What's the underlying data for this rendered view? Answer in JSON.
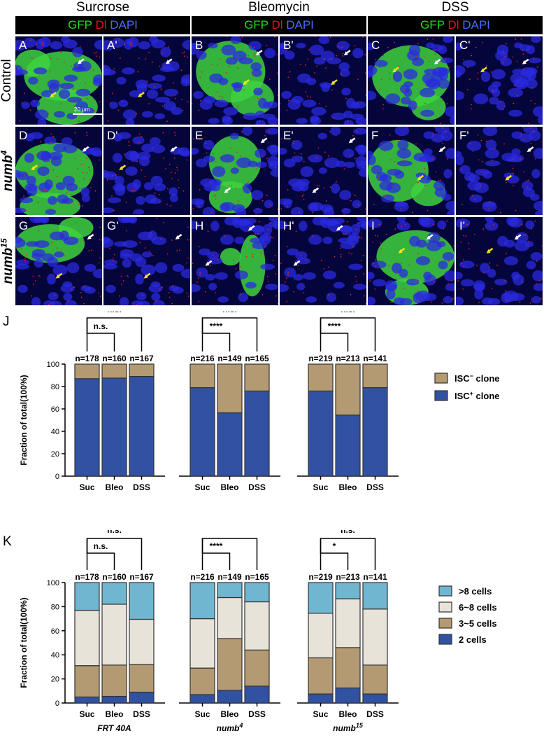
{
  "conditions": [
    {
      "title": "Surcrose",
      "channels": {
        "green": "GFP",
        "red": "Dl",
        "blue": "DAPI"
      }
    },
    {
      "title": "Bleomycin",
      "channels": {
        "green": "GFP",
        "red": "Dl",
        "blue": "DAPI"
      }
    },
    {
      "title": "DSS",
      "channels": {
        "green": "GFP",
        "red": "Dl",
        "blue": "DAPI"
      }
    }
  ],
  "rows": [
    {
      "label": "Control",
      "label_base": "",
      "label_sup": ""
    },
    {
      "label": "",
      "label_base": "numb",
      "label_sup": "4"
    },
    {
      "label": "",
      "label_base": "numb",
      "label_sup": "15"
    }
  ],
  "panel_labels": [
    [
      "A",
      "A'",
      "B",
      "B'",
      "C",
      "C'"
    ],
    [
      "D",
      "D'",
      "E",
      "E'",
      "F",
      "F'"
    ],
    [
      "G",
      "G'",
      "H",
      "H'",
      "I",
      "I'"
    ]
  ],
  "scale_bar": "20 μm",
  "colors": {
    "blue": "#3152a3",
    "tan": "#b49a72",
    "cream": "#e8e3d9",
    "lightblue": "#70b6d0",
    "gfp": "#3ed23e",
    "dapi": "#2a2ae0",
    "delta": "#e02020"
  },
  "chart_data": [
    {
      "type": "bar",
      "panel_label": "J",
      "stacked": true,
      "ylabel": "Fraction of total(100%)",
      "ylim": [
        0,
        100
      ],
      "yticks": [
        "0",
        "20",
        "40",
        "60",
        "80",
        "100"
      ],
      "groups": [
        {
          "name": "FRT 40A",
          "name_base": "FRT 40A",
          "name_sup": "",
          "categories": [
            "Suc",
            "Bleo",
            "DSS"
          ],
          "n": [
            "n=178",
            "n=160",
            "n=167"
          ],
          "sig_outer": "n.s.",
          "sig_inner": "n.s."
        },
        {
          "name": "numb4",
          "name_base": "numb",
          "name_sup": "4",
          "categories": [
            "Suc",
            "Bleo",
            "DSS"
          ],
          "n": [
            "n=216",
            "n=149",
            "n=165"
          ],
          "sig_outer": "n.s.",
          "sig_inner": "****"
        },
        {
          "name": "numb15",
          "name_base": "numb",
          "name_sup": "15",
          "categories": [
            "Suc",
            "Bleo",
            "DSS"
          ],
          "n": [
            "n=219",
            "n=213",
            "n=141"
          ],
          "sig_outer": "n.s.",
          "sig_inner": "****"
        }
      ],
      "series": [
        {
          "name": "ISC+ clone",
          "name_base": "ISC",
          "name_sup": "+",
          "name_rest": " clone",
          "color": "#3152a3",
          "values": [
            87,
            87.5,
            89,
            79,
            56.5,
            76,
            76,
            54.5,
            79
          ]
        },
        {
          "name": "ISC- clone",
          "name_base": "ISC",
          "name_sup": "−",
          "name_rest": " clone",
          "color": "#b49a72",
          "values": [
            13,
            12.5,
            11,
            21,
            43.5,
            24,
            24,
            45.5,
            21
          ]
        }
      ],
      "legend_placement": "right"
    },
    {
      "type": "bar",
      "panel_label": "K",
      "stacked": true,
      "ylabel": "Fraction of total(100%)",
      "ylim": [
        0,
        100
      ],
      "yticks": [
        "0",
        "20",
        "40",
        "60",
        "80",
        "100"
      ],
      "groups": [
        {
          "name": "FRT 40A",
          "name_base": "FRT 40A",
          "name_sup": "",
          "categories": [
            "Suc",
            "Bleo",
            "DSS"
          ],
          "n": [
            "n=178",
            "n=160",
            "n=167"
          ],
          "sig_outer": "n.s.",
          "sig_inner": "n.s."
        },
        {
          "name": "numb4",
          "name_base": "numb",
          "name_sup": "4",
          "categories": [
            "Suc",
            "Bleo",
            "DSS"
          ],
          "n": [
            "n=216",
            "n=149",
            "n=165"
          ],
          "sig_outer": "**",
          "sig_inner": "****"
        },
        {
          "name": "numb15",
          "name_base": "numb",
          "name_sup": "15",
          "categories": [
            "Suc",
            "Bleo",
            "DSS"
          ],
          "n": [
            "n=219",
            "n=213",
            "n=141"
          ],
          "sig_outer": "n.s.",
          "sig_inner": "*"
        }
      ],
      "series": [
        {
          "name": "2 cells",
          "color": "#3152a3",
          "values": [
            5,
            5.5,
            9,
            7,
            10.5,
            14,
            7.5,
            12.5,
            7.5
          ]
        },
        {
          "name": "3~5 cells",
          "color": "#b49a72",
          "values": [
            26,
            26,
            23,
            22,
            43,
            30,
            30,
            33.5,
            24
          ]
        },
        {
          "name": "6~8 cells",
          "color": "#e8e3d9",
          "values": [
            46,
            50.5,
            37.5,
            41,
            34,
            40,
            37,
            40.5,
            46.5
          ]
        },
        {
          "name": ">8 cells",
          "color": "#70b6d0",
          "values": [
            23,
            18,
            30.5,
            30,
            12.5,
            16,
            25.5,
            13.5,
            22
          ]
        }
      ],
      "legend_placement": "right"
    }
  ]
}
